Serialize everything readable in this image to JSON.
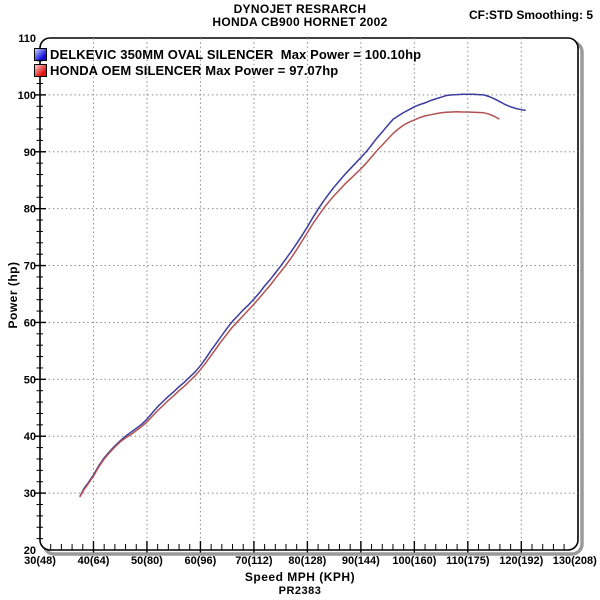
{
  "header": {
    "title_line1": "DYNOJET RESRARCH",
    "title_line2": "HONDA CB900 HORNET 2002",
    "smoothing": "CF:STD Smoothing: 5"
  },
  "legend": {
    "items": [
      {
        "label": "DELKEVIC 350MM OVAL SILENCER  Max Power = 100.10hp",
        "color": "#0d0dd6",
        "color_light": "#cdd4ff"
      },
      {
        "label": "HONDA OEM SILENCER Max Power = 97.07hp",
        "color": "#e01010",
        "color_light": "#ffd0d0"
      }
    ]
  },
  "chart_data": {
    "type": "line",
    "title": "DYNOJET RESRARCH - HONDA CB900 HORNET 2002",
    "xlabel": "Speed MPH (KPH)",
    "ylabel": "Power (hp)",
    "footnote": "PR2383",
    "xlim": [
      30,
      130.6
    ],
    "ylim": [
      20,
      110
    ],
    "grid": true,
    "x_ticks": [
      {
        "mph": 30,
        "label": "30(48)"
      },
      {
        "mph": 40,
        "label": "40(64)"
      },
      {
        "mph": 50,
        "label": "50(80)"
      },
      {
        "mph": 60,
        "label": "60(96)"
      },
      {
        "mph": 70,
        "label": "70(112)"
      },
      {
        "mph": 80,
        "label": "80(128)"
      },
      {
        "mph": 90,
        "label": "90(144)"
      },
      {
        "mph": 100,
        "label": "100(160)"
      },
      {
        "mph": 110,
        "label": "110(175)"
      },
      {
        "mph": 120,
        "label": "120(192)"
      },
      {
        "mph": 130,
        "label": "130(208)"
      }
    ],
    "y_ticks": [
      20,
      30,
      40,
      50,
      60,
      70,
      80,
      90,
      100,
      110
    ],
    "series": [
      {
        "name": "DELKEVIC 350MM OVAL SILENCER",
        "max_power_hp": 100.1,
        "color": "#3c3c9f",
        "points": [
          [
            37.5,
            29.5
          ],
          [
            38.2,
            30.8
          ],
          [
            39,
            31.8
          ],
          [
            40,
            33.2
          ],
          [
            41,
            34.8
          ],
          [
            42,
            36.2
          ],
          [
            43,
            37.3
          ],
          [
            44,
            38.3
          ],
          [
            45,
            39.2
          ],
          [
            46,
            40.0
          ],
          [
            47,
            40.7
          ],
          [
            48,
            41.4
          ],
          [
            49,
            42.1
          ],
          [
            50,
            43.0
          ],
          [
            51,
            44.1
          ],
          [
            52,
            45.2
          ],
          [
            53,
            46.1
          ],
          [
            54,
            47.0
          ],
          [
            55,
            47.8
          ],
          [
            56,
            48.7
          ],
          [
            57,
            49.5
          ],
          [
            58,
            50.4
          ],
          [
            59,
            51.3
          ],
          [
            60,
            52.4
          ],
          [
            61,
            53.7
          ],
          [
            62,
            55.1
          ],
          [
            63,
            56.4
          ],
          [
            64,
            57.7
          ],
          [
            65,
            59.0
          ],
          [
            66,
            60.2
          ],
          [
            67,
            61.2
          ],
          [
            68,
            62.2
          ],
          [
            69,
            63.1
          ],
          [
            70,
            64.1
          ],
          [
            71,
            65.2
          ],
          [
            72,
            66.4
          ],
          [
            73,
            67.5
          ],
          [
            74,
            68.7
          ],
          [
            75,
            69.9
          ],
          [
            76,
            71.2
          ],
          [
            77,
            72.5
          ],
          [
            78,
            73.9
          ],
          [
            79,
            75.3
          ],
          [
            80,
            76.8
          ],
          [
            81,
            78.4
          ],
          [
            82,
            79.9
          ],
          [
            83,
            81.3
          ],
          [
            84,
            82.6
          ],
          [
            85,
            83.8
          ],
          [
            86,
            84.9
          ],
          [
            87,
            86.0
          ],
          [
            88,
            87.0
          ],
          [
            89,
            88.0
          ],
          [
            90,
            89.0
          ],
          [
            91,
            90.0
          ],
          [
            92,
            91.2
          ],
          [
            93,
            92.4
          ],
          [
            94,
            93.5
          ],
          [
            95,
            94.6
          ],
          [
            96,
            95.7
          ],
          [
            97,
            96.3
          ],
          [
            98,
            96.9
          ],
          [
            99,
            97.4
          ],
          [
            100,
            97.9
          ],
          [
            101,
            98.3
          ],
          [
            102,
            98.6
          ],
          [
            103,
            99.0
          ],
          [
            104,
            99.3
          ],
          [
            105,
            99.6
          ],
          [
            106,
            99.9
          ],
          [
            107,
            100.0
          ],
          [
            108,
            100.05
          ],
          [
            109,
            100.1
          ],
          [
            110,
            100.1
          ],
          [
            111,
            100.1
          ],
          [
            112,
            100.05
          ],
          [
            113,
            100.0
          ],
          [
            114,
            99.7
          ],
          [
            115,
            99.3
          ],
          [
            116,
            98.8
          ],
          [
            117,
            98.3
          ],
          [
            118,
            97.9
          ],
          [
            119,
            97.6
          ],
          [
            120,
            97.4
          ],
          [
            120.7,
            97.3
          ]
        ]
      },
      {
        "name": "HONDA OEM SILENCER",
        "max_power_hp": 97.07,
        "color": "#b25252",
        "points": [
          [
            37.5,
            29.4
          ],
          [
            38.2,
            30.6
          ],
          [
            39,
            31.6
          ],
          [
            40,
            33.0
          ],
          [
            41,
            34.6
          ],
          [
            42,
            36.0
          ],
          [
            43,
            37.1
          ],
          [
            44,
            38.1
          ],
          [
            45,
            39.0
          ],
          [
            46,
            39.7
          ],
          [
            47,
            40.3
          ],
          [
            48,
            41.0
          ],
          [
            49,
            41.7
          ],
          [
            50,
            42.5
          ],
          [
            51,
            43.5
          ],
          [
            52,
            44.5
          ],
          [
            53,
            45.4
          ],
          [
            54,
            46.3
          ],
          [
            55,
            47.1
          ],
          [
            56,
            48.0
          ],
          [
            57,
            48.8
          ],
          [
            58,
            49.7
          ],
          [
            59,
            50.6
          ],
          [
            60,
            51.7
          ],
          [
            61,
            52.9
          ],
          [
            62,
            54.2
          ],
          [
            63,
            55.5
          ],
          [
            64,
            56.8
          ],
          [
            65,
            58.0
          ],
          [
            66,
            59.2
          ],
          [
            67,
            60.2
          ],
          [
            68,
            61.2
          ],
          [
            69,
            62.2
          ],
          [
            70,
            63.2
          ],
          [
            71,
            64.3
          ],
          [
            72,
            65.4
          ],
          [
            73,
            66.5
          ],
          [
            74,
            67.7
          ],
          [
            75,
            68.9
          ],
          [
            76,
            70.1
          ],
          [
            77,
            71.4
          ],
          [
            78,
            72.8
          ],
          [
            79,
            74.3
          ],
          [
            80,
            75.8
          ],
          [
            81,
            77.3
          ],
          [
            82,
            78.7
          ],
          [
            83,
            80.0
          ],
          [
            84,
            81.2
          ],
          [
            85,
            82.3
          ],
          [
            86,
            83.3
          ],
          [
            87,
            84.3
          ],
          [
            88,
            85.2
          ],
          [
            89,
            86.1
          ],
          [
            90,
            87.0
          ],
          [
            91,
            88.0
          ],
          [
            92,
            89.1
          ],
          [
            93,
            90.2
          ],
          [
            94,
            91.2
          ],
          [
            95,
            92.2
          ],
          [
            96,
            93.2
          ],
          [
            97,
            94.0
          ],
          [
            98,
            94.7
          ],
          [
            99,
            95.2
          ],
          [
            100,
            95.6
          ],
          [
            101,
            96.0
          ],
          [
            102,
            96.3
          ],
          [
            103,
            96.5
          ],
          [
            104,
            96.7
          ],
          [
            105,
            96.85
          ],
          [
            106,
            96.95
          ],
          [
            107,
            97.0
          ],
          [
            108,
            97.05
          ],
          [
            109,
            97.0
          ],
          [
            110,
            97.0
          ],
          [
            111,
            96.95
          ],
          [
            112,
            96.9
          ],
          [
            113,
            96.85
          ],
          [
            114,
            96.6
          ],
          [
            115,
            96.2
          ],
          [
            115.8,
            95.8
          ]
        ]
      }
    ]
  }
}
